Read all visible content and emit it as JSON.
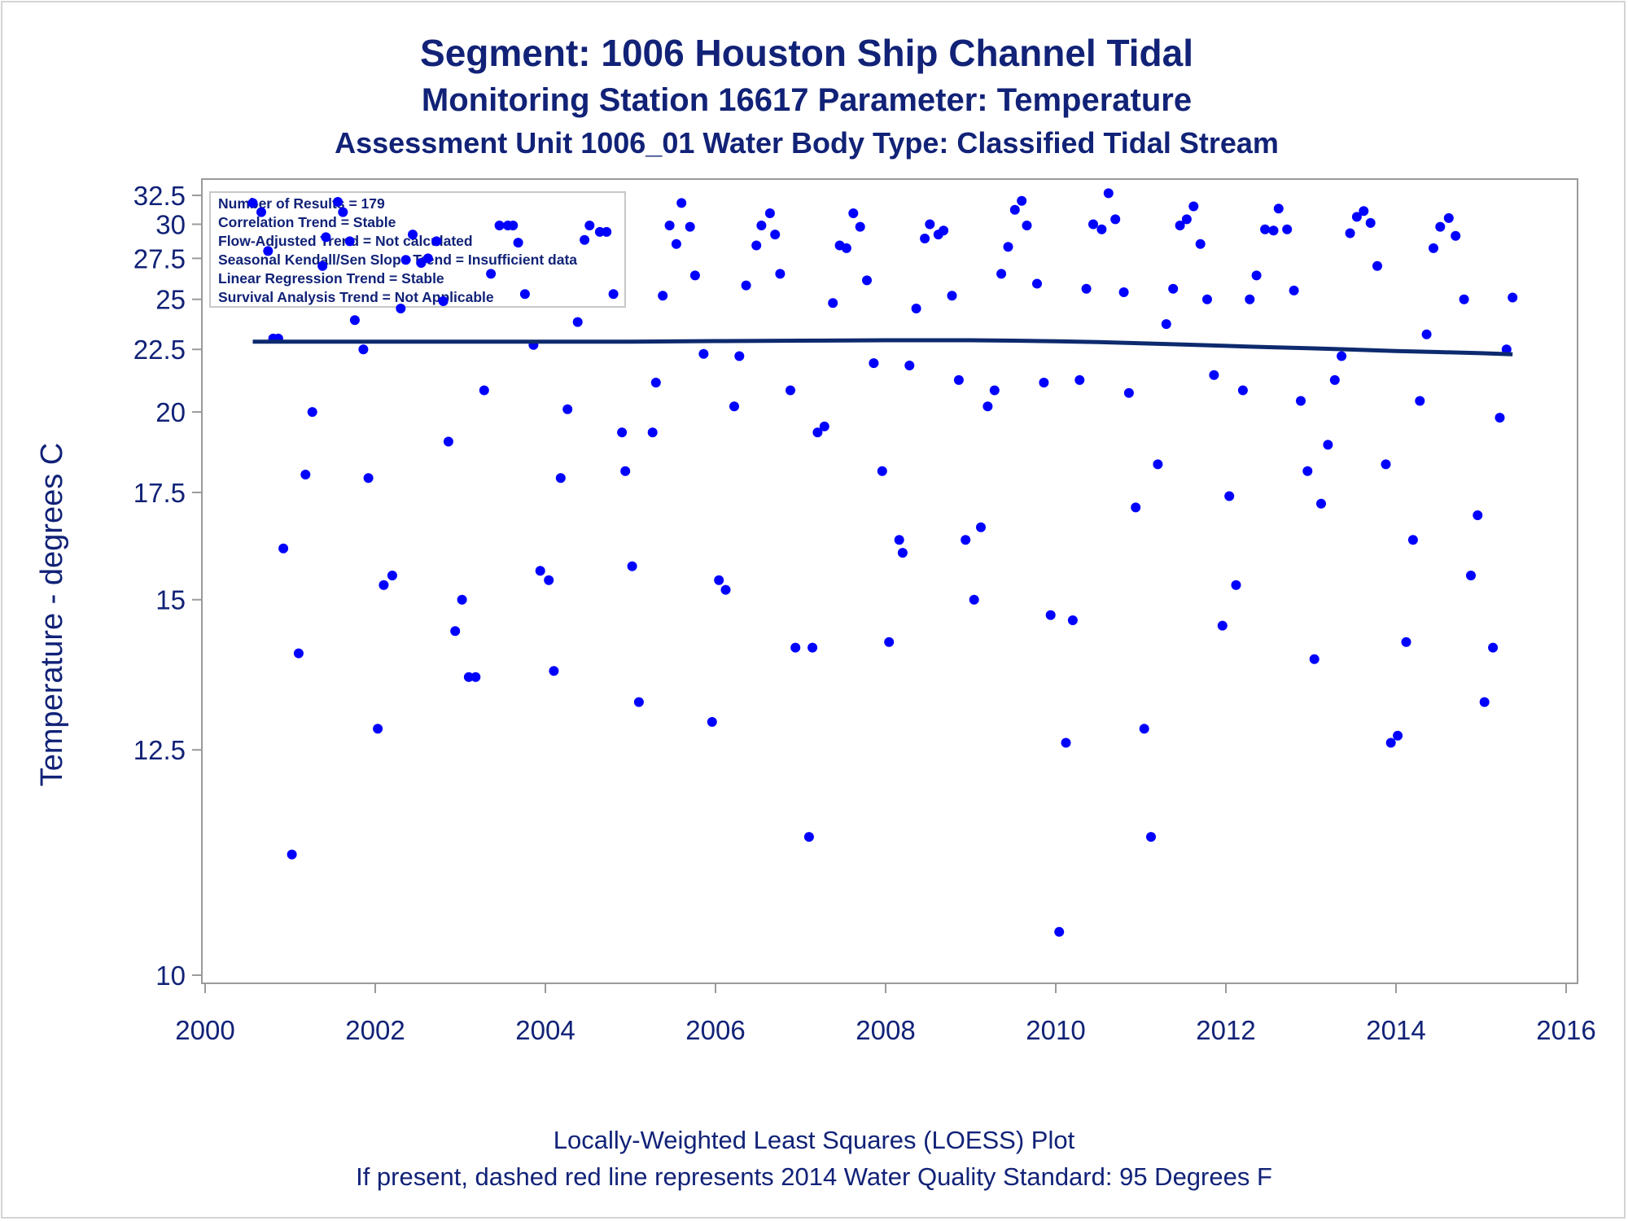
{
  "titles": {
    "line1": "Segment: 1006  Houston Ship Channel Tidal",
    "line2": "Monitoring Station 16617 Parameter: Temperature",
    "line3": "Assessment Unit 1006_01   Water Body Type: Classified Tidal Stream"
  },
  "footnotes": {
    "line1": "Locally-Weighted Least Squares (LOESS) Plot",
    "line2": "If present, dashed red line represents 2014 Water Quality Standard: 95   Degrees F"
  },
  "colors": {
    "text": "#112277",
    "points": "#0000ff",
    "loess": "#0d2a6e",
    "axis": "#9a9a9a"
  },
  "chart_data": {
    "type": "scatter",
    "title": "",
    "xlabel": "",
    "ylabel": "Temperature - degrees C",
    "xlim": [
      2000,
      2016
    ],
    "ylim": [
      10,
      33
    ],
    "y_scale": "reciprocal",
    "grid": false,
    "x_ticks": [
      2000,
      2002,
      2004,
      2006,
      2008,
      2010,
      2012,
      2014,
      2016
    ],
    "y_ticks": [
      10,
      12.5,
      15,
      17.5,
      20,
      22.5,
      25,
      27.5,
      30,
      32.5
    ],
    "y_tick_labels": [
      "10",
      "12.5",
      "15",
      "17.5",
      "20",
      "22.5",
      "25",
      "27.5",
      "30",
      "32.5"
    ],
    "legend": {
      "position": "top-left",
      "lines": [
        "Number of Results = 179",
        "Correlation Trend = Stable",
        "Flow-Adjusted Trend = Not calculated",
        "Seasonal Kendall/Sen Slope Trend = Insufficient data",
        "Linear Regression Trend = Stable",
        "Survival Analysis Trend = Not Applicable"
      ]
    },
    "series": [
      {
        "kind": "points",
        "x": [
          2000.56,
          2000.66,
          2000.74,
          2000.8,
          2000.86,
          2000.92,
          2001.02,
          2001.1,
          2001.18,
          2001.26,
          2001.38,
          2001.42,
          2001.56,
          2001.62,
          2001.7,
          2001.76,
          2001.86,
          2001.92,
          2002.03,
          2002.1,
          2002.2,
          2002.3,
          2002.36,
          2002.44,
          2002.54,
          2002.62,
          2002.72,
          2002.8,
          2002.86,
          2002.94,
          2003.02,
          2003.1,
          2003.18,
          2003.28,
          2003.36,
          2003.46,
          2003.56,
          2003.62,
          2003.68,
          2003.76,
          2003.86,
          2003.94,
          2004.04,
          2004.1,
          2004.18,
          2004.26,
          2004.38,
          2004.46,
          2004.52,
          2004.64,
          2004.72,
          2004.8,
          2004.9,
          2004.94,
          2005.02,
          2005.1,
          2005.26,
          2005.3,
          2005.38,
          2005.46,
          2005.54,
          2005.6,
          2005.7,
          2005.76,
          2005.86,
          2005.96,
          2006.04,
          2006.12,
          2006.22,
          2006.28,
          2006.36,
          2006.48,
          2006.54,
          2006.64,
          2006.7,
          2006.76,
          2006.88,
          2006.94,
          2007.1,
          2007.14,
          2007.2,
          2007.28,
          2007.38,
          2007.46,
          2007.54,
          2007.62,
          2007.7,
          2007.78,
          2007.86,
          2007.96,
          2008.04,
          2008.16,
          2008.2,
          2008.28,
          2008.36,
          2008.46,
          2008.52,
          2008.62,
          2008.68,
          2008.78,
          2008.86,
          2008.94,
          2009.04,
          2009.12,
          2009.2,
          2009.28,
          2009.36,
          2009.44,
          2009.52,
          2009.6,
          2009.66,
          2009.78,
          2009.86,
          2009.94,
          2010.04,
          2010.12,
          2010.2,
          2010.28,
          2010.36,
          2010.44,
          2010.54,
          2010.62,
          2010.7,
          2010.8,
          2010.86,
          2010.94,
          2011.04,
          2011.12,
          2011.2,
          2011.3,
          2011.38,
          2011.46,
          2011.54,
          2011.62,
          2011.7,
          2011.78,
          2011.86,
          2011.96,
          2012.04,
          2012.12,
          2012.2,
          2012.28,
          2012.36,
          2012.46,
          2012.56,
          2012.62,
          2012.72,
          2012.8,
          2012.88,
          2012.96,
          2013.04,
          2013.12,
          2013.2,
          2013.28,
          2013.36,
          2013.46,
          2013.54,
          2013.62,
          2013.7,
          2013.78,
          2013.88,
          2013.94,
          2014.02,
          2014.12,
          2014.2,
          2014.28,
          2014.36,
          2014.44,
          2014.52,
          2014.62,
          2014.7,
          2014.8,
          2014.88,
          2014.96,
          2015.04,
          2015.14,
          2015.22,
          2015.3,
          2015.37
        ],
        "y": [
          31.8,
          31.0,
          28.0,
          23.0,
          23.0,
          16.1,
          11.2,
          14.0,
          18.0,
          20.0,
          27.0,
          29.0,
          31.9,
          31.0,
          28.7,
          23.9,
          22.5,
          17.9,
          12.8,
          15.3,
          15.5,
          24.5,
          27.4,
          29.2,
          27.2,
          27.5,
          28.7,
          24.9,
          19.0,
          14.4,
          15.0,
          13.6,
          13.6,
          20.8,
          26.5,
          29.9,
          29.9,
          29.9,
          28.6,
          25.3,
          22.7,
          15.6,
          15.4,
          13.7,
          17.9,
          20.1,
          23.8,
          28.8,
          29.9,
          29.4,
          29.4,
          25.3,
          19.3,
          18.1,
          15.7,
          13.2,
          19.3,
          21.1,
          25.2,
          29.9,
          28.5,
          31.8,
          29.8,
          26.4,
          22.3,
          12.9,
          15.4,
          15.2,
          20.2,
          22.2,
          25.8,
          28.4,
          29.9,
          30.9,
          29.2,
          26.5,
          20.8,
          14.1,
          11.4,
          14.1,
          19.3,
          19.5,
          24.8,
          28.4,
          28.2,
          30.9,
          29.8,
          26.1,
          21.9,
          18.1,
          14.2,
          16.3,
          16.0,
          21.8,
          24.5,
          28.9,
          30.0,
          29.2,
          29.5,
          25.2,
          21.2,
          16.3,
          15.0,
          16.6,
          20.2,
          20.8,
          26.5,
          28.3,
          31.2,
          32.0,
          29.9,
          25.9,
          21.1,
          14.7,
          10.4,
          12.6,
          14.6,
          21.2,
          25.6,
          30.0,
          29.6,
          32.7,
          30.4,
          25.4,
          20.7,
          17.1,
          12.8,
          11.4,
          18.3,
          23.7,
          25.6,
          29.9,
          30.4,
          31.5,
          28.5,
          25.0,
          21.4,
          14.5,
          17.4,
          15.3,
          20.8,
          25.0,
          26.4,
          29.6,
          29.5,
          31.3,
          29.6,
          25.5,
          20.4,
          18.1,
          13.9,
          17.2,
          18.9,
          21.2,
          22.2,
          29.3,
          30.6,
          31.1,
          30.1,
          27.0,
          18.3,
          12.6,
          12.7,
          14.2,
          16.3,
          20.4,
          23.2,
          28.2,
          29.8,
          30.5,
          29.1,
          25.0,
          15.5,
          16.9,
          13.2,
          14.1,
          19.8,
          22.5,
          25.1
        ]
      },
      {
        "kind": "loess",
        "x": [
          2000.56,
          2003,
          2005,
          2006,
          2007,
          2008,
          2009,
          2009.5,
          2010,
          2010.5,
          2011,
          2011.5,
          2012,
          2012.5,
          2013,
          2013.5,
          2014,
          2014.5,
          2015,
          2015.37
        ],
        "y": [
          22.85,
          22.85,
          22.85,
          22.88,
          22.9,
          22.92,
          22.92,
          22.9,
          22.87,
          22.83,
          22.78,
          22.72,
          22.66,
          22.6,
          22.55,
          22.49,
          22.43,
          22.38,
          22.33,
          22.28
        ]
      }
    ]
  }
}
